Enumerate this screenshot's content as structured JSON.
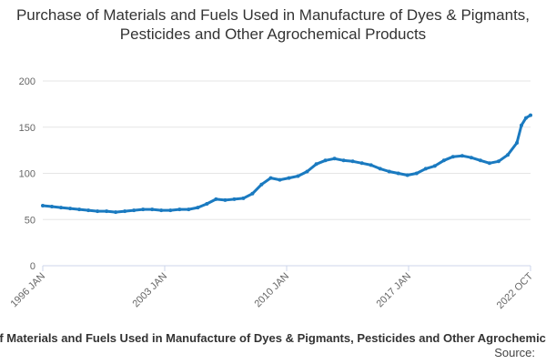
{
  "chart_data": {
    "type": "line",
    "title": "Purchase of Materials and Fuels Used in Manufacture of Dyes & Pigmants, Pesticides and Other Agrochemical Products",
    "xlabel": "",
    "ylabel": "",
    "ylim": [
      0,
      200
    ],
    "y_ticks": [
      "0",
      "50",
      "100",
      "150",
      "200"
    ],
    "x_tick_labels": [
      "1996 JAN",
      "2003 JAN",
      "2010 JAN",
      "2017 JAN",
      "2022 OCT"
    ],
    "grid": "horizontal",
    "legend_position": "bottom",
    "colors": {
      "series": "#1a7ac0",
      "grid": "#e6e6e6",
      "axis": "#ccd6eb"
    },
    "x_range": [
      "1996-01",
      "2022-10"
    ],
    "series": [
      {
        "name": "Purchase of Materials and Fuels Used in Manufacture of Dyes & Pigmants, Pesticides and Other Agrochemical Products",
        "points": [
          [
            "1996-01",
            65
          ],
          [
            "1996-07",
            64
          ],
          [
            "1997-01",
            63
          ],
          [
            "1997-07",
            62
          ],
          [
            "1998-01",
            61
          ],
          [
            "1998-07",
            60
          ],
          [
            "1999-01",
            59
          ],
          [
            "1999-07",
            59
          ],
          [
            "2000-01",
            58
          ],
          [
            "2000-07",
            59
          ],
          [
            "2001-01",
            60
          ],
          [
            "2001-07",
            61
          ],
          [
            "2002-01",
            61
          ],
          [
            "2002-07",
            60
          ],
          [
            "2003-01",
            60
          ],
          [
            "2003-07",
            61
          ],
          [
            "2004-01",
            61
          ],
          [
            "2004-07",
            63
          ],
          [
            "2005-01",
            67
          ],
          [
            "2005-07",
            72
          ],
          [
            "2006-01",
            71
          ],
          [
            "2006-07",
            72
          ],
          [
            "2007-01",
            73
          ],
          [
            "2007-07",
            78
          ],
          [
            "2008-01",
            88
          ],
          [
            "2008-07",
            95
          ],
          [
            "2009-01",
            93
          ],
          [
            "2009-07",
            95
          ],
          [
            "2010-01",
            97
          ],
          [
            "2010-07",
            102
          ],
          [
            "2011-01",
            110
          ],
          [
            "2011-07",
            114
          ],
          [
            "2012-01",
            116
          ],
          [
            "2012-07",
            114
          ],
          [
            "2013-01",
            113
          ],
          [
            "2013-07",
            111
          ],
          [
            "2014-01",
            109
          ],
          [
            "2014-07",
            105
          ],
          [
            "2015-01",
            102
          ],
          [
            "2015-07",
            100
          ],
          [
            "2016-01",
            98
          ],
          [
            "2016-07",
            100
          ],
          [
            "2017-01",
            105
          ],
          [
            "2017-07",
            108
          ],
          [
            "2018-01",
            114
          ],
          [
            "2018-07",
            118
          ],
          [
            "2019-01",
            119
          ],
          [
            "2019-07",
            117
          ],
          [
            "2020-01",
            114
          ],
          [
            "2020-07",
            111
          ],
          [
            "2021-01",
            113
          ],
          [
            "2021-07",
            120
          ],
          [
            "2022-01",
            133
          ],
          [
            "2022-04",
            152
          ],
          [
            "2022-07",
            160
          ],
          [
            "2022-10",
            163
          ]
        ]
      }
    ]
  },
  "source": {
    "label": "Source:"
  }
}
